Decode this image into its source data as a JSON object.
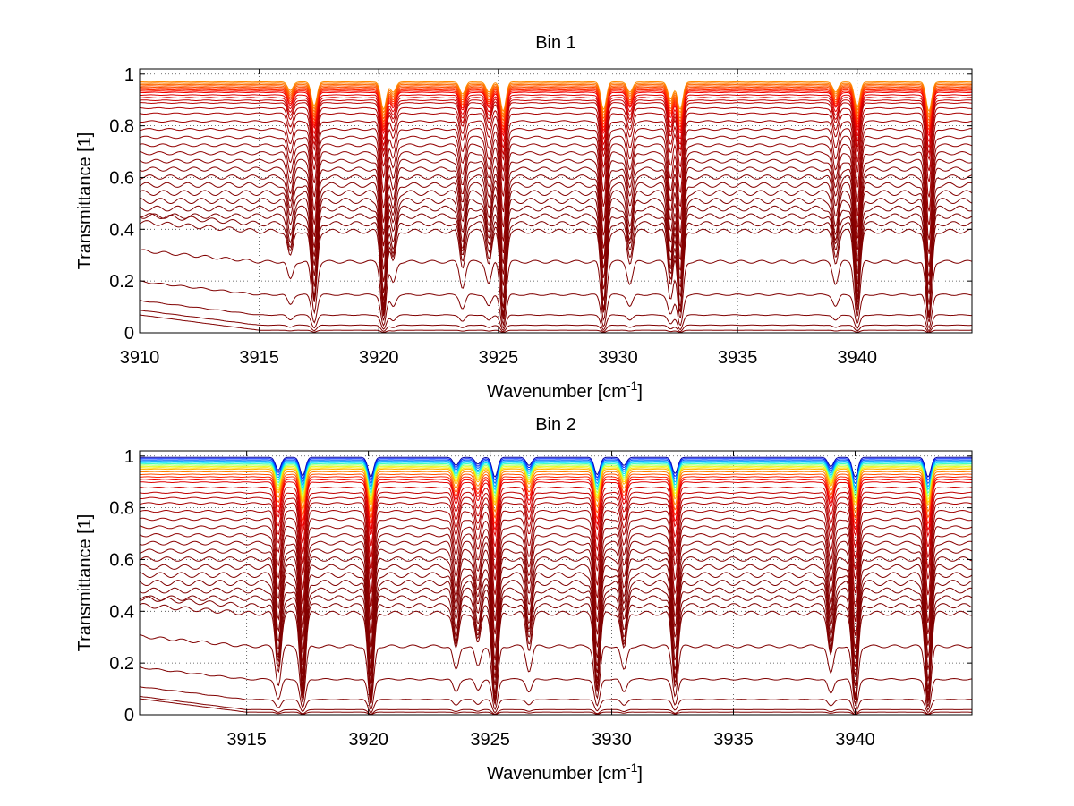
{
  "chart_data": [
    {
      "type": "line",
      "title": "Bin 1",
      "xlabel": "Wavenumber [cm",
      "xlabel_superscript": "-1",
      "xlabel_suffix": "]",
      "ylabel": "Transmittance [1]",
      "xlim": [
        3910,
        3944.8
      ],
      "ylim": [
        0,
        1.02
      ],
      "xticks": [
        3910,
        3915,
        3920,
        3925,
        3930,
        3935,
        3940
      ],
      "xtick_labels": [
        "3910",
        "3915",
        "3920",
        "3925",
        "3930",
        "3935",
        "3940"
      ],
      "yticks": [
        0,
        0.2,
        0.4,
        0.6,
        0.8,
        1
      ],
      "ytick_labels": [
        "0",
        "0.2",
        "0.4",
        "0.6",
        "0.8",
        "1"
      ],
      "grid": true,
      "grid_style": "dotted",
      "colormap": "jet",
      "absorption_lines": [
        {
          "x": 3916.3,
          "depth": 0.25
        },
        {
          "x": 3917.3,
          "depth": 0.7
        },
        {
          "x": 3920.2,
          "depth": 0.8
        },
        {
          "x": 3920.6,
          "depth": 0.3
        },
        {
          "x": 3923.5,
          "depth": 0.35
        },
        {
          "x": 3924.6,
          "depth": 0.3
        },
        {
          "x": 3925.2,
          "depth": 0.85
        },
        {
          "x": 3929.4,
          "depth": 0.8
        },
        {
          "x": 3930.5,
          "depth": 0.3
        },
        {
          "x": 3932.2,
          "depth": 0.5
        },
        {
          "x": 3932.6,
          "depth": 0.8
        },
        {
          "x": 3939.1,
          "depth": 0.3
        },
        {
          "x": 3940.0,
          "depth": 0.75
        },
        {
          "x": 3943.0,
          "depth": 0.85
        }
      ],
      "series_baselines": [
        0.97,
        0.965,
        0.96,
        0.955,
        0.95,
        0.945,
        0.94,
        0.935,
        0.93,
        0.92,
        0.91,
        0.9,
        0.89,
        0.87,
        0.85,
        0.82,
        0.79,
        0.76,
        0.73,
        0.7,
        0.67,
        0.64,
        0.61,
        0.58,
        0.55,
        0.52,
        0.49,
        0.46,
        0.43,
        0.4,
        0.28,
        0.15,
        0.07,
        0.03,
        0.01
      ],
      "series_colors": [
        "#ff8c00",
        "#ff7a00",
        "#ff6a00",
        "#ff5a00",
        "#ff4a00",
        "#ff3a00",
        "#ff2a00",
        "#ff1a00",
        "#f00000",
        "#e00000",
        "#d00000",
        "#c40000",
        "#b80000",
        "#b00000",
        "#a80000",
        "#a00000",
        "#9a0000",
        "#960000",
        "#920000",
        "#900000",
        "#8c0000",
        "#8a0000",
        "#880000",
        "#860000",
        "#840000",
        "#820000",
        "#800000",
        "#800000",
        "#800000",
        "#800000",
        "#800000",
        "#800000",
        "#800000",
        "#800000",
        "#800000"
      ]
    },
    {
      "type": "line",
      "title": "Bin 2",
      "xlabel": "Wavenumber [cm",
      "xlabel_superscript": "-1",
      "xlabel_suffix": "]",
      "ylabel": "Transmittance [1]",
      "xlim": [
        3910.6,
        3944.8
      ],
      "ylim": [
        0,
        1.02
      ],
      "xticks": [
        3915,
        3920,
        3925,
        3930,
        3935,
        3940
      ],
      "xtick_labels": [
        "3915",
        "3920",
        "3925",
        "3930",
        "3935",
        "3940"
      ],
      "yticks": [
        0,
        0.2,
        0.4,
        0.6,
        0.8,
        1
      ],
      "ytick_labels": [
        "0",
        "0.2",
        "0.4",
        "0.6",
        "0.8",
        "1"
      ],
      "grid": true,
      "grid_style": "dotted",
      "colormap": "jet",
      "absorption_lines": [
        {
          "x": 3916.3,
          "depth": 0.55
        },
        {
          "x": 3917.3,
          "depth": 0.8
        },
        {
          "x": 3920.1,
          "depth": 0.85
        },
        {
          "x": 3923.6,
          "depth": 0.35
        },
        {
          "x": 3924.5,
          "depth": 0.3
        },
        {
          "x": 3925.2,
          "depth": 0.85
        },
        {
          "x": 3926.6,
          "depth": 0.35
        },
        {
          "x": 3929.4,
          "depth": 0.75
        },
        {
          "x": 3930.5,
          "depth": 0.35
        },
        {
          "x": 3932.6,
          "depth": 0.7
        },
        {
          "x": 3939.0,
          "depth": 0.4
        },
        {
          "x": 3940.0,
          "depth": 0.85
        },
        {
          "x": 3943.0,
          "depth": 0.85
        }
      ],
      "series_baselines": [
        0.995,
        0.99,
        0.985,
        0.98,
        0.975,
        0.97,
        0.965,
        0.96,
        0.955,
        0.95,
        0.94,
        0.93,
        0.92,
        0.91,
        0.9,
        0.88,
        0.86,
        0.84,
        0.82,
        0.79,
        0.76,
        0.73,
        0.7,
        0.67,
        0.64,
        0.61,
        0.58,
        0.55,
        0.52,
        0.49,
        0.46,
        0.43,
        0.4,
        0.27,
        0.14,
        0.06,
        0.02,
        0.01
      ],
      "series_colors": [
        "#0000a0",
        "#0020ff",
        "#0060ff",
        "#00a0ff",
        "#00e0ff",
        "#40ffc0",
        "#a0ff60",
        "#e0ff20",
        "#ffe000",
        "#ffb000",
        "#ff8000",
        "#ff5000",
        "#ff2000",
        "#f00000",
        "#e00000",
        "#d00000",
        "#c00000",
        "#b40000",
        "#a80000",
        "#a00000",
        "#980000",
        "#920000",
        "#8e0000",
        "#8a0000",
        "#880000",
        "#860000",
        "#840000",
        "#820000",
        "#800000",
        "#800000",
        "#800000",
        "#800000",
        "#800000",
        "#800000",
        "#800000",
        "#800000",
        "#800000",
        "#800000"
      ]
    }
  ]
}
